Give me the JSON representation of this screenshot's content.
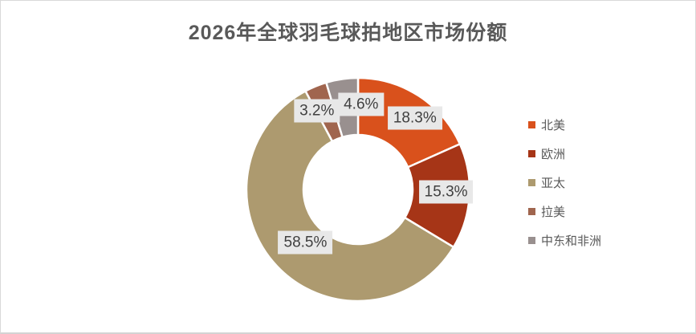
{
  "chart_data": {
    "type": "pie",
    "subtype": "donut",
    "title": "2026年全球羽毛球拍地区市场份额",
    "categories": [
      "北美",
      "欧洲",
      "亚太",
      "拉美",
      "中东和非洲"
    ],
    "values": [
      18.3,
      15.3,
      58.5,
      3.2,
      4.6
    ],
    "data_labels": [
      "18.3%",
      "15.3%",
      "58.5%",
      "3.2%",
      "4.6%"
    ],
    "colors": [
      "#D9511C",
      "#A63517",
      "#AD9A6F",
      "#A0654E",
      "#99908F"
    ],
    "start_angle_deg": 0,
    "direction": "clockwise",
    "donut_hole_ratio": 0.49,
    "legend_position": "right",
    "grid": false
  },
  "styles": {
    "title_color": "#595959",
    "legend_text_color": "#595959",
    "data_label_bg": "#E8E8E8",
    "data_label_text": "#404040",
    "slice_border_color": "#FFFFFF"
  }
}
